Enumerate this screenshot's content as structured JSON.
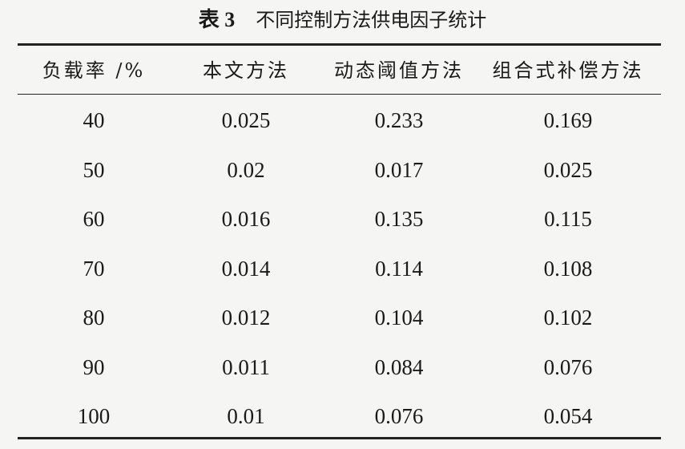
{
  "table": {
    "label": "表 3",
    "title": "不同控制方法供电因子统计",
    "header": [
      "负载率 /%",
      "本文方法",
      "动态阈值方法",
      "组合式补偿方法"
    ],
    "rows": [
      [
        "40",
        "0.025",
        "0.233",
        "0.169"
      ],
      [
        "50",
        "0.02",
        "0.017",
        "0.025"
      ],
      [
        "60",
        "0.016",
        "0.135",
        "0.115"
      ],
      [
        "70",
        "0.014",
        "0.114",
        "0.108"
      ],
      [
        "80",
        "0.012",
        "0.104",
        "0.102"
      ],
      [
        "90",
        "0.011",
        "0.084",
        "0.076"
      ],
      [
        "100",
        "0.01",
        "0.076",
        "0.054"
      ]
    ]
  }
}
